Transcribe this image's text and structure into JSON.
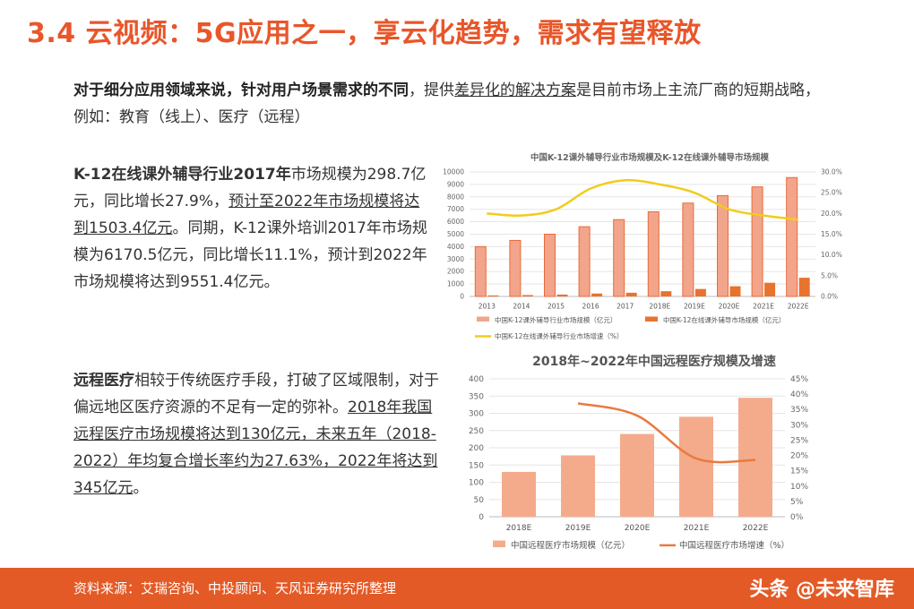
{
  "header": {
    "title": "3.4 云视频：5G应用之一，享云化趋势，需求有望释放"
  },
  "intro": {
    "bold": "对于细分应用领域来说，针对用户场景需求的不同",
    "sep": "，提供",
    "underlined": "差异化的解决方案",
    "rest": "是目前市场上主流厂商的短期战略，例如：教育（线上）、医疗（远程）"
  },
  "k12": {
    "bold": "K-12在线课外辅导行业2017年",
    "t1": "市场规模为298.7亿元，同比增长27.9%，",
    "ul1": "预计至2022年市场规模将达到1503.4亿元",
    "t2": "。同期，K-12课外培训2017年市场规模为6170.5亿元，同比增长11.1%，预计到2022年市场规模将达到9551.4亿元。"
  },
  "remote": {
    "bold": "远程医疗",
    "t1": "相较于传统医疗手段，打破了区域限制，对于偏远地区医疗资源的不足有一定的弥补。",
    "ul1": "2018年我国远程医疗市场规模将达到130亿元，未来五年（2018-2022）年均复合增长率约为27.63%，2022年将达到345亿元",
    "t2": "。"
  },
  "footer": {
    "source": "资料来源：艾瑞咨询、中投顾问、天风证券研究所整理",
    "watermark": "头条 @未来智库"
  },
  "chart_data": [
    {
      "type": "bar",
      "title": "中国K-12课外辅导行业市场规模及K-12在线课外辅导市场规模",
      "categories": [
        "2013",
        "2014",
        "2015",
        "2016",
        "2017",
        "2018E",
        "2019E",
        "2020E",
        "2021E",
        "2022E"
      ],
      "series": [
        {
          "name": "中国K-12课外辅导行业市场规模（亿元）",
          "type": "bar",
          "axis": "left",
          "color": "#f2a58a",
          "edge": "#e96a3b",
          "values": [
            4000,
            4500,
            5000,
            5600,
            6170.5,
            6800,
            7500,
            8100,
            8800,
            9551.4
          ]
        },
        {
          "name": "中国K-12在线课外辅导市场规模（亿元）",
          "type": "bar",
          "axis": "left",
          "color": "#e8732e",
          "values": [
            80,
            110,
            150,
            233.5,
            298.7,
            420,
            600,
            820,
            1100,
            1503.4
          ]
        },
        {
          "name": "中国K-12在线课外辅导行业市场增速（%）",
          "type": "line",
          "axis": "right",
          "color": "#f2cc1c",
          "values": [
            20,
            19.5,
            21,
            26,
            28,
            27,
            25,
            21,
            19.5,
            18.5
          ]
        }
      ],
      "ylim_left": [
        0,
        10000
      ],
      "yticks_left": [
        0,
        1000,
        2000,
        3000,
        4000,
        5000,
        6000,
        7000,
        8000,
        9000,
        10000
      ],
      "ylim_right": [
        0,
        30
      ],
      "yticks_right": [
        "0.0%",
        "5.0%",
        "10.0%",
        "15.0%",
        "20.0%",
        "25.0%",
        "30.0%"
      ],
      "grid": true,
      "legend": "bottom"
    },
    {
      "type": "bar",
      "title": "2018年~2022年中国远程医疗规模及增速",
      "categories": [
        "2018E",
        "2019E",
        "2020E",
        "2021E",
        "2022E"
      ],
      "series": [
        {
          "name": "中国远程医疗市场规模（亿元）",
          "type": "bar",
          "axis": "left",
          "color": "#f4ab8c",
          "values": [
            130,
            178,
            240,
            290,
            345
          ]
        },
        {
          "name": "中国远程医疗市场增速（%）",
          "type": "line",
          "axis": "right",
          "color": "#ea7a3f",
          "values": [
            null,
            37,
            33,
            19,
            18.5
          ]
        }
      ],
      "ylim_left": [
        0,
        400
      ],
      "yticks_left": [
        0,
        50,
        100,
        150,
        200,
        250,
        300,
        350,
        400
      ],
      "ylim_right": [
        0,
        45
      ],
      "yticks_right": [
        "0%",
        "5%",
        "10%",
        "15%",
        "20%",
        "25%",
        "30%",
        "35%",
        "40%",
        "45%"
      ],
      "grid": true,
      "legend": "bottom"
    }
  ]
}
